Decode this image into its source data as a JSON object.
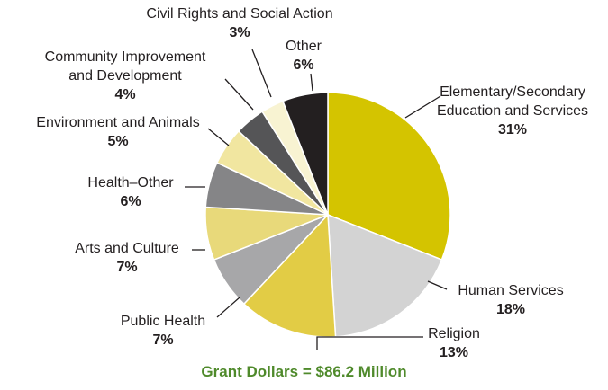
{
  "chart_data": {
    "type": "pie",
    "footer": "Grant Dollars = $86.2 Million",
    "slices": [
      {
        "name": "Elementary/Secondary Education and Services",
        "lines": [
          "Elementary/Secondary",
          "Education and Services"
        ],
        "value": 31,
        "label": "31%",
        "color": "#d4c400"
      },
      {
        "name": "Human Services",
        "lines": [
          "Human Services"
        ],
        "value": 18,
        "label": "18%",
        "color": "#d3d3d3"
      },
      {
        "name": "Religion",
        "lines": [
          "Religion"
        ],
        "value": 13,
        "label": "13%",
        "color": "#e2cc45"
      },
      {
        "name": "Public Health",
        "lines": [
          "Public Health"
        ],
        "value": 7,
        "label": "7%",
        "color": "#a7a7a9"
      },
      {
        "name": "Arts and Culture",
        "lines": [
          "Arts and Culture"
        ],
        "value": 7,
        "label": "7%",
        "color": "#e8d97a"
      },
      {
        "name": "Health–Other",
        "lines": [
          "Health–Other"
        ],
        "value": 6,
        "label": "6%",
        "color": "#858587"
      },
      {
        "name": "Environment and Animals",
        "lines": [
          "Environment and Animals"
        ],
        "value": 5,
        "label": "5%",
        "color": "#f1e6a0"
      },
      {
        "name": "Community Improvement and Development",
        "lines": [
          "Community Improvement",
          "and Development"
        ],
        "value": 4,
        "label": "4%",
        "color": "#555557"
      },
      {
        "name": "Civil Rights and Social Action",
        "lines": [
          "Civil Rights and Social Action"
        ],
        "value": 3,
        "label": "3%",
        "color": "#f8f3d2"
      },
      {
        "name": "Other",
        "lines": [
          "Other"
        ],
        "value": 6,
        "label": "6%",
        "color": "#231f20"
      }
    ]
  }
}
